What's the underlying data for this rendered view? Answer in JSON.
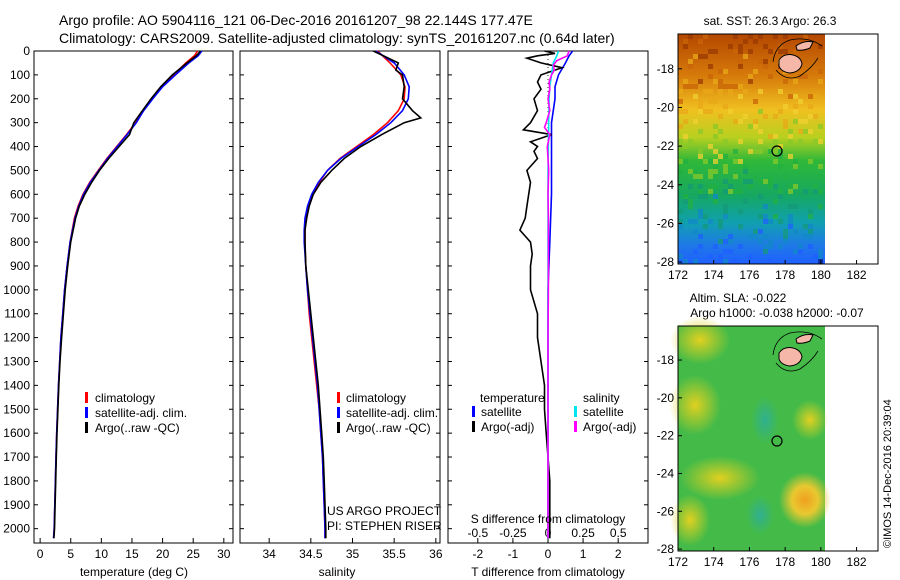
{
  "header": {
    "line1": "Argo profile: AO 5904116_121 06-Dec-2016 20161207_98 22.144S 177.47E",
    "line2": "Climatology: CARS2009. Satellite-adjusted climatology: synTS_20161207.nc (0.64d later)"
  },
  "colors": {
    "climatology": "#ff0000",
    "satellite": "#0000ff",
    "argo": "#000000",
    "satellite_s": "#00e5ee",
    "argo_s": "#ff00ff"
  },
  "panels": {
    "temperature": {
      "xlabel": "temperature (deg C)",
      "legend": [
        "climatology",
        "satellite-adj. clim.",
        "Argo(..raw -QC)"
      ]
    },
    "salinity": {
      "xlabel": "salinity",
      "legend": [
        "climatology",
        "satellite-adj. clim.",
        "Argo(..raw -QC)"
      ],
      "credit1": "US ARGO PROJECT",
      "credit2": "PI: STEPHEN RISER"
    },
    "difference": {
      "top_axis_label": "S difference from climatology",
      "xlabel": "T difference from climatology",
      "legend_head_t": "temperature",
      "legend_head_s": "salinity",
      "legend_t": [
        "satellite",
        "Argo(-adj)"
      ],
      "legend_s": [
        "satellite",
        "Argo(-adj)"
      ]
    },
    "sst_map": {
      "title": "sat. SST: 26.3 Argo: 26.3"
    },
    "sla_map": {
      "title1": "Altim. SLA: -0.022",
      "title2": "Argo h1000: -0.038 h2000: -0.07"
    },
    "stamp": "©IMOS 14-Dec-2016 20:39:04"
  },
  "chart_data": [
    {
      "type": "line",
      "name": "temperature",
      "xlim": [
        -1,
        31.5
      ],
      "ylim": [
        2060,
        0
      ],
      "xticks": [
        0,
        5,
        10,
        15,
        20,
        25,
        30
      ],
      "yticks": [
        0,
        100,
        200,
        300,
        400,
        500,
        600,
        700,
        800,
        900,
        1000,
        1100,
        1200,
        1300,
        1400,
        1500,
        1600,
        1700,
        1800,
        1900,
        2000
      ],
      "series": [
        {
          "name": "climatology",
          "color": "#ff0000",
          "depth": [
            0,
            20,
            50,
            100,
            150,
            200,
            250,
            300,
            350,
            400,
            450,
            500,
            550,
            600,
            650,
            700,
            800,
            900,
            1000,
            1100,
            1200,
            1300,
            1400,
            1500,
            1600,
            1700,
            1800,
            1900,
            2000,
            2040
          ],
          "values": [
            25.7,
            25.2,
            23.8,
            21.8,
            19.8,
            18.2,
            16.8,
            15.6,
            14.1,
            12.5,
            10.9,
            9.5,
            8.1,
            7.0,
            6.2,
            5.6,
            4.9,
            4.4,
            4.0,
            3.7,
            3.4,
            3.2,
            3.0,
            2.85,
            2.7,
            2.6,
            2.5,
            2.4,
            2.3,
            2.2
          ]
        },
        {
          "name": "satellite-adj. clim.",
          "color": "#0000ff",
          "depth": [
            0,
            20,
            50,
            100,
            150,
            200,
            250,
            300,
            350,
            400,
            450,
            500,
            550,
            600,
            650,
            700,
            800,
            900,
            1000,
            1100,
            1200,
            1300,
            1400,
            1500,
            1600,
            1700,
            1800,
            1900,
            2000,
            2040
          ],
          "values": [
            26.4,
            25.8,
            24.3,
            22.1,
            20.0,
            18.4,
            16.9,
            15.7,
            14.2,
            12.6,
            11.0,
            9.6,
            8.2,
            7.1,
            6.3,
            5.7,
            4.9,
            4.4,
            4.0,
            3.7,
            3.4,
            3.2,
            3.0,
            2.85,
            2.7,
            2.6,
            2.5,
            2.4,
            2.3,
            2.2
          ]
        },
        {
          "name": "Argo(..raw -QC)",
          "color": "#000000",
          "depth": [
            0,
            20,
            50,
            100,
            150,
            200,
            250,
            300,
            350,
            400,
            450,
            500,
            550,
            600,
            650,
            700,
            800,
            900,
            1000,
            1100,
            1200,
            1300,
            1400,
            1500,
            1600,
            1700,
            1800,
            1900,
            2000,
            2040
          ],
          "values": [
            26.2,
            25.5,
            24.0,
            21.6,
            19.7,
            18.1,
            16.7,
            15.3,
            14.6,
            12.9,
            11.2,
            9.7,
            8.4,
            7.3,
            6.4,
            5.8,
            5.0,
            4.5,
            4.1,
            3.8,
            3.5,
            3.25,
            3.05,
            2.9,
            2.75,
            2.65,
            2.55,
            2.45,
            2.35,
            2.25
          ]
        }
      ]
    },
    {
      "type": "line",
      "name": "salinity",
      "xlim": [
        33.65,
        36.05
      ],
      "ylim": [
        2060,
        0
      ],
      "xticks": [
        34,
        34.5,
        35,
        35.5,
        36
      ],
      "series": [
        {
          "name": "climatology",
          "color": "#ff0000",
          "depth": [
            0,
            50,
            100,
            150,
            200,
            250,
            300,
            350,
            400,
            450,
            500,
            550,
            600,
            650,
            700,
            750,
            800,
            900,
            1000,
            1100,
            1200,
            1300,
            1400,
            1500,
            1600,
            1700,
            1800,
            1900,
            2000,
            2040
          ],
          "values": [
            35.3,
            35.45,
            35.58,
            35.63,
            35.62,
            35.55,
            35.42,
            35.25,
            35.05,
            34.85,
            34.7,
            34.6,
            34.52,
            34.47,
            34.44,
            34.43,
            34.43,
            34.44,
            34.46,
            34.48,
            34.51,
            34.54,
            34.57,
            34.6,
            34.62,
            34.64,
            34.65,
            34.66,
            34.67,
            34.67
          ]
        },
        {
          "name": "satellite-adj. clim.",
          "color": "#0000ff",
          "depth": [
            0,
            50,
            100,
            150,
            200,
            250,
            300,
            350,
            400,
            450,
            500,
            550,
            600,
            650,
            700,
            750,
            800,
            900,
            1000,
            1100,
            1200,
            1300,
            1400,
            1500,
            1600,
            1700,
            1800,
            1900,
            2000,
            2040
          ],
          "values": [
            35.28,
            35.5,
            35.62,
            35.68,
            35.67,
            35.6,
            35.46,
            35.28,
            35.07,
            34.86,
            34.7,
            34.59,
            34.51,
            34.46,
            34.43,
            34.42,
            34.42,
            34.44,
            34.46,
            34.49,
            34.52,
            34.55,
            34.58,
            34.6,
            34.62,
            34.64,
            34.65,
            34.66,
            34.67,
            34.67
          ]
        },
        {
          "name": "Argo(..raw -QC)",
          "color": "#000000",
          "depth": [
            0,
            50,
            80,
            100,
            150,
            200,
            250,
            280,
            300,
            350,
            400,
            450,
            500,
            550,
            600,
            650,
            700,
            750,
            800,
            900,
            1000,
            1100,
            1200,
            1300,
            1400,
            1500,
            1600,
            1700,
            1800,
            1900,
            2000,
            2040
          ],
          "values": [
            35.25,
            35.55,
            35.52,
            35.6,
            35.62,
            35.6,
            35.72,
            35.82,
            35.62,
            35.35,
            35.1,
            34.9,
            34.75,
            34.62,
            34.53,
            34.48,
            34.45,
            34.43,
            34.43,
            34.44,
            34.47,
            34.5,
            34.53,
            34.56,
            34.59,
            34.61,
            34.63,
            34.65,
            34.66,
            34.67,
            34.68,
            34.68
          ]
        }
      ]
    },
    {
      "type": "line",
      "name": "difference",
      "xlim": [
        -2.85,
        2.85
      ],
      "ylim": [
        2060,
        0
      ],
      "xticks": [
        -2,
        -1,
        0,
        1,
        2
      ],
      "top_ticks": [
        -0.5,
        -0.25,
        0,
        0.25,
        0.5
      ],
      "top_tick_labels": [
        "-0.5",
        "-0.25",
        "0",
        "0.25",
        "0.5"
      ],
      "series": [
        {
          "name": "T satellite",
          "color": "#0000ff",
          "depth": [
            0,
            20,
            50,
            100,
            150,
            200,
            300,
            400,
            500,
            600,
            800,
            1000,
            1200,
            1400,
            1600,
            1800,
            2000,
            2040
          ],
          "values": [
            0.7,
            0.6,
            0.5,
            0.3,
            0.2,
            0.2,
            0.1,
            0.1,
            0.1,
            0.1,
            0.05,
            0.0,
            0.0,
            0.0,
            0.0,
            0.0,
            0.0,
            0.0
          ]
        },
        {
          "name": "T Argo(-adj)",
          "color": "#000000",
          "depth": [
            0,
            10,
            20,
            30,
            50,
            70,
            100,
            130,
            160,
            200,
            250,
            300,
            330,
            350,
            380,
            400,
            420,
            450,
            500,
            550,
            600,
            650,
            700,
            750,
            800,
            850,
            900,
            950,
            1000,
            1100,
            1200,
            1300,
            1400,
            1500,
            1600,
            1700,
            1800,
            1900,
            2000,
            2040
          ],
          "values": [
            -0.1,
            0.2,
            -0.3,
            -0.6,
            -0.2,
            0.4,
            -0.2,
            -0.3,
            -0.2,
            -0.4,
            -0.3,
            -0.5,
            -0.7,
            0.1,
            -0.5,
            -0.3,
            -0.4,
            -0.3,
            -0.6,
            -0.5,
            -0.55,
            -0.6,
            -0.65,
            -0.8,
            -0.5,
            -0.45,
            -0.5,
            -0.5,
            -0.5,
            -0.3,
            -0.3,
            -0.2,
            -0.1,
            -0.1,
            -0.05,
            0.0,
            0.05,
            0.05,
            0.05,
            0.05
          ]
        },
        {
          "name": "S satellite",
          "color": "#00e5ee",
          "depth": [
            0,
            20,
            50,
            100,
            150,
            200,
            300,
            400,
            500,
            600,
            800,
            1000,
            1200,
            1400,
            1600,
            1800,
            2000,
            2040
          ],
          "values": [
            0.3,
            0.25,
            0.15,
            0.1,
            0.05,
            0.03,
            0.02,
            0.01,
            0.0,
            0.0,
            0.0,
            0.0,
            0.0,
            0.0,
            0.0,
            0.0,
            0.0,
            0.0
          ]
        },
        {
          "name": "S Argo(-adj)",
          "color": "#ff00ff",
          "depth": [
            0,
            20,
            40,
            60,
            80,
            100,
            130,
            160,
            200,
            250,
            300,
            320,
            350,
            400,
            450,
            500,
            600,
            700,
            800,
            1000,
            1200,
            1400,
            1600,
            1800,
            2000,
            2040
          ],
          "values": [
            0.6,
            0.55,
            0.25,
            0.15,
            0.18,
            0.1,
            0.03,
            0.05,
            0.0,
            0.05,
            -0.05,
            -0.1,
            0.05,
            -0.02,
            0.0,
            0.02,
            0.0,
            0.01,
            0.01,
            0.01,
            0.0,
            0.0,
            0.0,
            0.0,
            0.0,
            0.0
          ]
        }
      ]
    }
  ],
  "maps": {
    "xticks": [
      172,
      174,
      176,
      178,
      180,
      182
    ],
    "yticks": [
      -18,
      -20,
      -22,
      -24,
      -26,
      -28
    ],
    "xlim": [
      172,
      183.2
    ],
    "ylim": [
      -16.2,
      -28.1
    ],
    "data_lon_max": 180,
    "profile_lon": 177.47,
    "profile_lat": -22.144
  }
}
